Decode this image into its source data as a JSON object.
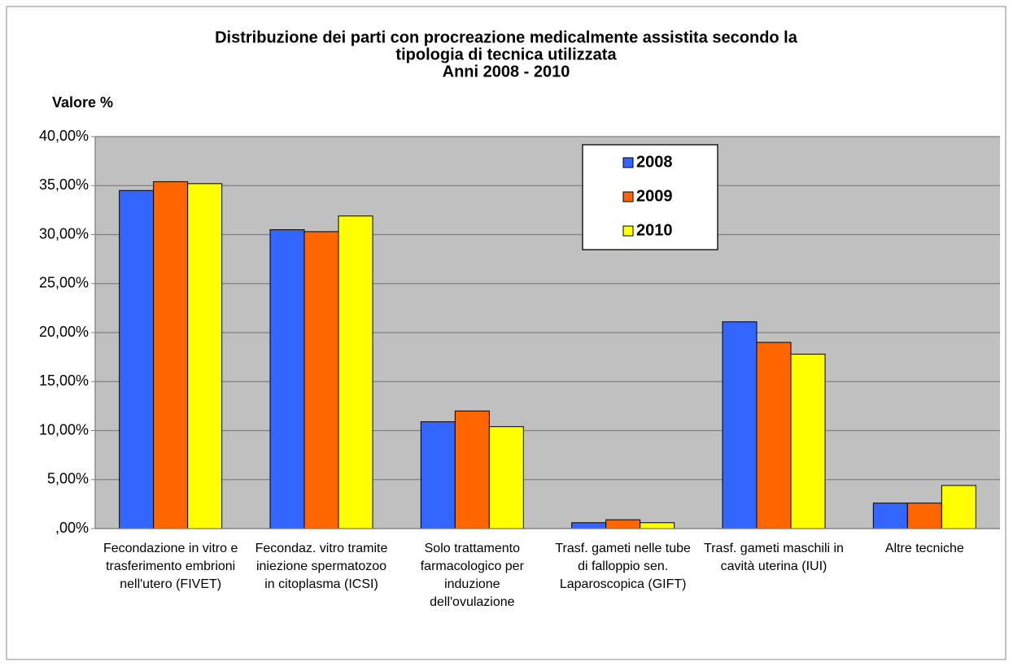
{
  "chart_data": {
    "type": "bar",
    "title": [
      "Distribuzione dei parti con procreazione medicalmente assistita secondo la",
      "tipologia di tecnica utilizzata",
      "Anni 2008 - 2010"
    ],
    "y_label": "Valore %",
    "categories": [
      "Fecondazione in vitro e trasferimento embrioni nell'utero (FIVET)",
      "Fecondaz. vitro tramite iniezione spermatozoo in citoplasma (ICSI)",
      "Solo trattamento farmacologico per induzione dell'ovulazione",
      "Trasf. gameti nelle tube di falloppio sen. Laparoscopica (GIFT)",
      "Trasf. gameti maschili in cavità uterina (IUI)",
      "Altre tecniche"
    ],
    "series": [
      {
        "name": "2008",
        "color": "#3366ff",
        "values": [
          34.5,
          30.5,
          10.9,
          0.6,
          21.1,
          2.6
        ]
      },
      {
        "name": "2009",
        "color": "#ff6600",
        "values": [
          35.4,
          30.3,
          12.0,
          0.9,
          19.0,
          2.6
        ]
      },
      {
        "name": "2010",
        "color": "#ffff00",
        "values": [
          35.2,
          31.9,
          10.4,
          0.6,
          17.8,
          4.4
        ]
      }
    ],
    "ylim": [
      0,
      40
    ],
    "yticks": [
      {
        "value": 0,
        "label": ",00%"
      },
      {
        "value": 5,
        "label": "5,00%"
      },
      {
        "value": 10,
        "label": "10,00%"
      },
      {
        "value": 15,
        "label": "15,00%"
      },
      {
        "value": 20,
        "label": "20,00%"
      },
      {
        "value": 25,
        "label": "25,00%"
      },
      {
        "value": 30,
        "label": "30,00%"
      },
      {
        "value": 35,
        "label": "35,00%"
      },
      {
        "value": 40,
        "label": "40,00%"
      }
    ],
    "grid": true,
    "legend": "top-right"
  }
}
